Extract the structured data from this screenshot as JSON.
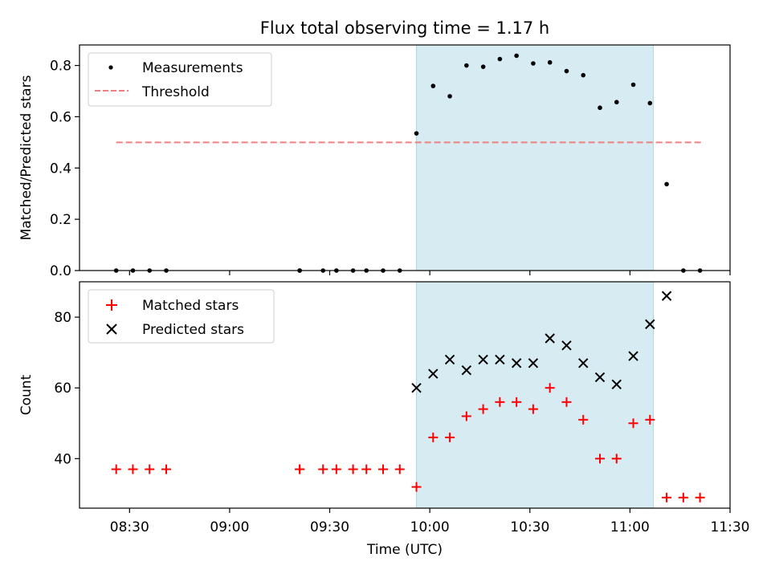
{
  "figure": {
    "title": "Flux total observing time = 1.17 h"
  },
  "chart_data": [
    {
      "type": "scatter",
      "ylabel": "Matched/Predicted stars",
      "xlim": [
        "08:15",
        "11:30"
      ],
      "ylim": [
        0,
        0.88
      ],
      "yticks": [
        "0.0",
        "0.2",
        "0.4",
        "0.6",
        "0.8"
      ],
      "ytick_values": [
        0,
        0.2,
        0.4,
        0.6,
        0.8
      ],
      "shaded_span": {
        "start": "09:56",
        "end": "11:07",
        "color": "#add8e6"
      },
      "legend_position": "upper-left",
      "series": [
        {
          "name": "Measurements",
          "marker": "dot",
          "color": "#000000",
          "x": [
            "08:26",
            "08:31",
            "08:36",
            "08:41",
            "09:21",
            "09:21",
            "09:28",
            "09:32",
            "09:37",
            "09:41",
            "09:46",
            "09:51",
            "09:56",
            "10:01",
            "10:06",
            "10:11",
            "10:16",
            "10:21",
            "10:26",
            "10:31",
            "10:36",
            "10:41",
            "10:46",
            "10:51",
            "10:56",
            "11:01",
            "11:06",
            "11:11",
            "11:16",
            "11:21"
          ],
          "y": [
            0,
            0,
            0,
            0,
            0,
            0,
            0,
            0,
            0,
            0,
            0,
            0,
            0.535,
            0.72,
            0.68,
            0.8,
            0.795,
            0.825,
            0.838,
            0.808,
            0.812,
            0.778,
            0.762,
            0.635,
            0.657,
            0.725,
            0.653,
            0.337,
            0,
            0
          ]
        },
        {
          "name": "Threshold",
          "marker": "dashed-line",
          "color": "#f08080",
          "x": [
            "08:26",
            "11:22"
          ],
          "y": [
            0.5,
            0.5
          ]
        }
      ]
    },
    {
      "type": "scatter",
      "xlabel": "Time (UTC)",
      "ylabel": "Count",
      "xlim": [
        "08:15",
        "11:30"
      ],
      "ylim": [
        26,
        90
      ],
      "yticks": [
        "40",
        "60",
        "80"
      ],
      "ytick_values": [
        40,
        60,
        80
      ],
      "xticks": [
        "08:30",
        "09:00",
        "09:30",
        "10:00",
        "10:30",
        "11:00",
        "11:30"
      ],
      "shaded_span": {
        "start": "09:56",
        "end": "11:07",
        "color": "#add8e6"
      },
      "legend_position": "upper-left",
      "series": [
        {
          "name": "Matched stars",
          "marker": "plus",
          "color": "#ff0000",
          "x": [
            "08:26",
            "08:31",
            "08:36",
            "08:41",
            "09:21",
            "09:21",
            "09:28",
            "09:32",
            "09:37",
            "09:41",
            "09:46",
            "09:51",
            "09:56",
            "10:01",
            "10:06",
            "10:11",
            "10:16",
            "10:21",
            "10:26",
            "10:31",
            "10:36",
            "10:41",
            "10:46",
            "10:51",
            "10:56",
            "11:01",
            "11:06",
            "11:11",
            "11:16",
            "11:21"
          ],
          "y": [
            37,
            37,
            37,
            37,
            37,
            37,
            37,
            37,
            37,
            37,
            37,
            37,
            32,
            46,
            46,
            52,
            54,
            56,
            56,
            54,
            60,
            56,
            51,
            40,
            40,
            50,
            51,
            29,
            29,
            29
          ]
        },
        {
          "name": "Predicted stars",
          "marker": "x",
          "color": "#000000",
          "x": [
            "09:56",
            "10:01",
            "10:06",
            "10:11",
            "10:16",
            "10:21",
            "10:26",
            "10:31",
            "10:36",
            "10:41",
            "10:46",
            "10:51",
            "10:56",
            "11:01",
            "11:06",
            "11:11"
          ],
          "y": [
            60,
            64,
            68,
            65,
            68,
            68,
            67,
            67,
            74,
            72,
            67,
            63,
            61,
            69,
            78,
            86
          ]
        }
      ]
    }
  ]
}
